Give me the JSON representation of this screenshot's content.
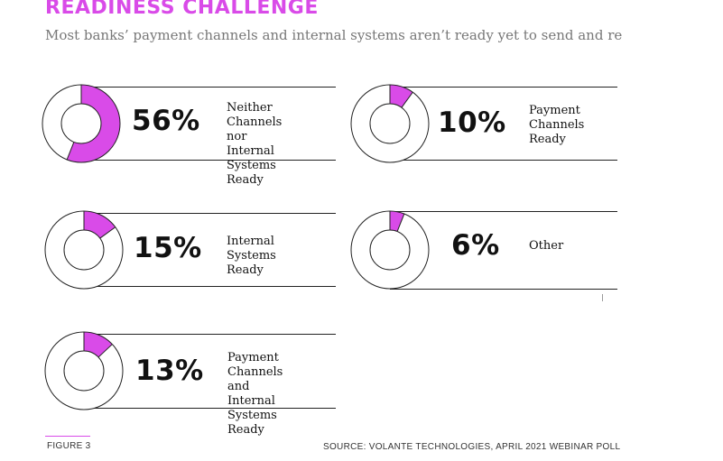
{
  "header": {
    "title": "READINESS CHALLENGE",
    "subtitle": "Most banks’ payment channels and internal systems aren’t ready yet to send and receive the new standard’s data-rich messages, according to a recent poll."
  },
  "colors": {
    "accent": "#d94be8",
    "ring_stroke": "#222222",
    "text": "#111111"
  },
  "chart_data": {
    "type": "pie",
    "series": [
      {
        "name": "Neither Channels nor Internal Systems Ready",
        "value": 56,
        "label": "56%"
      },
      {
        "name": "Payment Channels Ready",
        "value": 10,
        "label": "10%"
      },
      {
        "name": "Internal Systems Ready",
        "value": 15,
        "label": "15%"
      },
      {
        "name": "Other",
        "value": 6,
        "label": "6%"
      },
      {
        "name": "Payment Channels and Internal Systems Ready",
        "value": 13,
        "label": "13%"
      }
    ],
    "unit": "%"
  },
  "cards": [
    {
      "pct": "56%",
      "value": 56,
      "label_lines": [
        "Neither Channels",
        "nor Internal",
        "Systems Ready"
      ]
    },
    {
      "pct": "10%",
      "value": 10,
      "label_lines": [
        "Payment",
        "Channels",
        "Ready"
      ]
    },
    {
      "pct": "15%",
      "value": 15,
      "label_lines": [
        "Internal",
        "Systems Ready"
      ]
    },
    {
      "pct": "6%",
      "value": 6,
      "label_lines": [
        "Other"
      ]
    },
    {
      "pct": "13%",
      "value": 13,
      "label_lines": [
        "Payment Channels",
        "and Internal",
        "Systems Ready"
      ]
    }
  ],
  "footer": {
    "figure": "FIGURE 3",
    "source": "SOURCE: VOLANTE TECHNOLOGIES, APRIL 2021 WEBINAR POLL"
  }
}
